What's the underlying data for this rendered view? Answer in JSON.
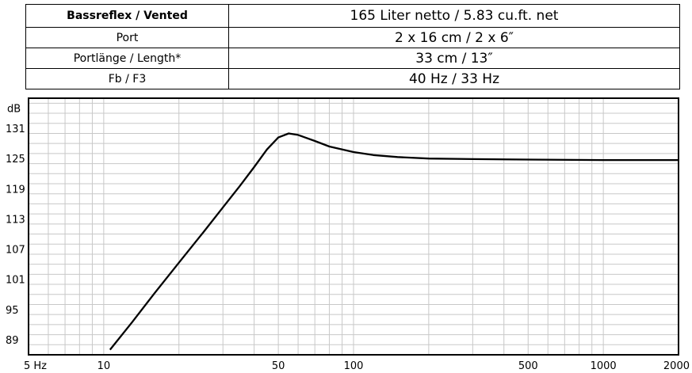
{
  "specs": [
    {
      "label": "Bassreflex / Vented",
      "value": "165 Liter netto / 5.83 cu.ft. net"
    },
    {
      "label": "Port",
      "value": "2 x 16 cm / 2 x 6″"
    },
    {
      "label": "Portlänge / Length*",
      "value": "33 cm / 13″"
    },
    {
      "label": "Fb / F3",
      "value": "40 Hz / 33 Hz"
    }
  ],
  "chart_data": {
    "type": "line",
    "title": "",
    "xlabel": "",
    "ylabel": "dB",
    "x_scale": "log",
    "xlim": [
      5,
      2000
    ],
    "ylim": [
      86,
      137
    ],
    "grid": true,
    "x_tick_labels": [
      "5 Hz",
      "10",
      "50",
      "100",
      "500",
      "1000",
      "2000"
    ],
    "x_tick_values": [
      5,
      10,
      50,
      100,
      500,
      1000,
      2000
    ],
    "y_ticks": [
      89,
      95,
      101,
      107,
      113,
      119,
      125,
      131
    ],
    "y_unit_label": "dB",
    "series": [
      {
        "color": "#000000",
        "x": [
          10.6,
          13,
          16,
          20,
          25,
          30,
          35,
          40,
          45,
          50,
          55,
          60,
          70,
          80,
          100,
          120,
          150,
          200,
          300,
          500,
          1000,
          2000
        ],
        "y": [
          87,
          92.5,
          98.3,
          104.3,
          110.3,
          115.3,
          119.5,
          123.3,
          126.8,
          129.2,
          130,
          129.7,
          128.5,
          127.4,
          126.3,
          125.7,
          125.3,
          125,
          124.9,
          124.8,
          124.7,
          124.7
        ]
      }
    ]
  }
}
